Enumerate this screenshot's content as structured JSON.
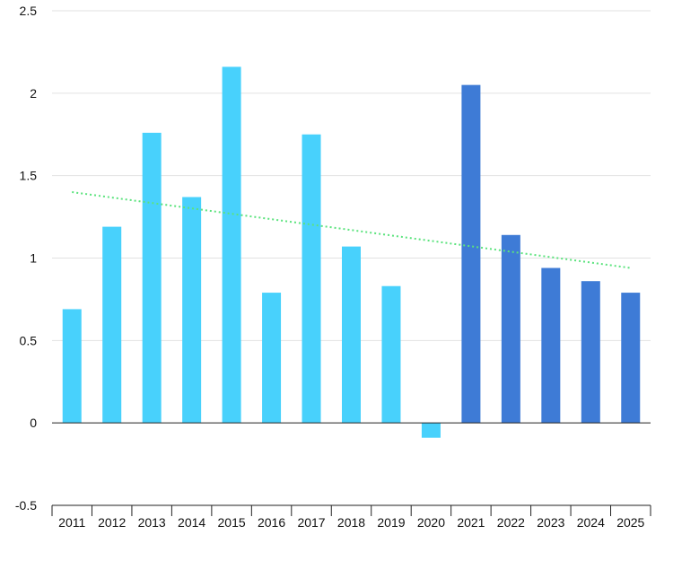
{
  "chart_data": {
    "type": "bar",
    "title": "",
    "xlabel": "",
    "ylabel": "",
    "categories": [
      "2011",
      "2012",
      "2013",
      "2014",
      "2015",
      "2016",
      "2017",
      "2018",
      "2019",
      "2020",
      "2021",
      "2022",
      "2023",
      "2024",
      "2025"
    ],
    "values": [
      0.69,
      1.19,
      1.76,
      1.37,
      2.16,
      0.79,
      1.75,
      1.07,
      0.83,
      -0.09,
      2.05,
      1.14,
      0.94,
      0.86,
      0.79
    ],
    "highlight_from_index": 10,
    "ylim": [
      -0.5,
      2.5
    ],
    "yticks": [
      -0.5,
      0,
      0.5,
      1,
      1.5,
      2,
      2.5
    ],
    "ytick_labels": [
      "-0.5",
      "0",
      "0.5",
      "1",
      "1.5",
      "2",
      "2.5"
    ],
    "trendline": {
      "start": 1.4,
      "end": 0.94,
      "color": "#5BE37D",
      "style": "dotted"
    },
    "grid": true,
    "legend": "none",
    "colors": {
      "actual": "#48D1FC",
      "forecast": "#3E7BD6",
      "grid": "#E2E2E2",
      "axis": "#222222"
    }
  }
}
